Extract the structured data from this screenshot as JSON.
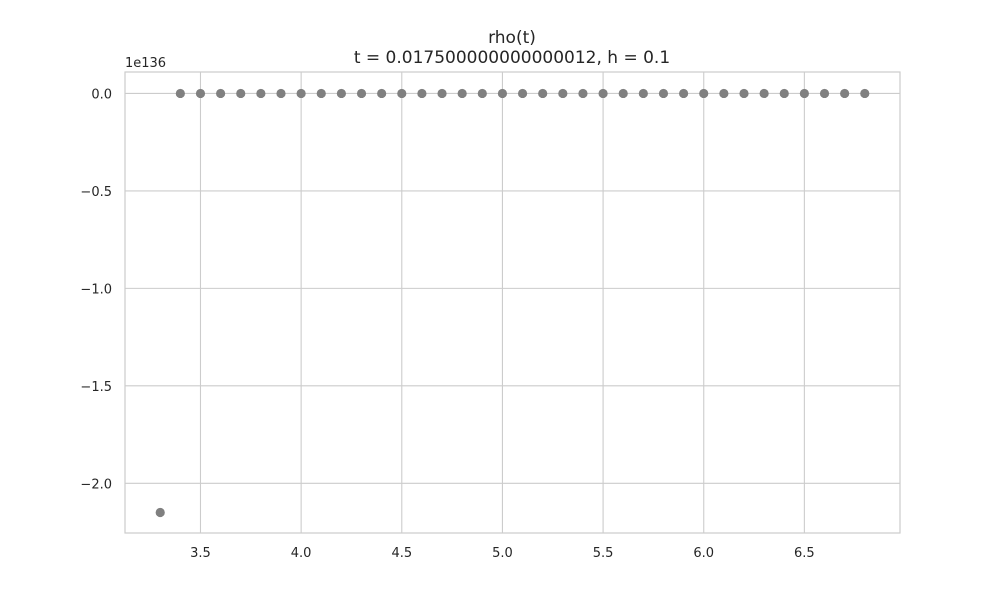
{
  "chart_data": {
    "type": "scatter",
    "title": "rho(t)",
    "subtitle": "t = 0.017500000000000012, h = 0.1",
    "xlabel": "",
    "ylabel": "",
    "y_offset_label": "1e136",
    "xlim": [
      3.125,
      6.975
    ],
    "ylim": [
      -2.255,
      0.11
    ],
    "x_ticks": [
      3.5,
      4.0,
      4.5,
      5.0,
      5.5,
      6.0,
      6.5
    ],
    "x_tick_labels": [
      "3.5",
      "4.0",
      "4.5",
      "5.0",
      "5.5",
      "6.0",
      "6.5"
    ],
    "y_ticks": [
      0.0,
      -0.5,
      -1.0,
      -1.5,
      -2.0
    ],
    "y_tick_labels": [
      "0.0",
      "−0.5",
      "−1.0",
      "−1.5",
      "−2.0"
    ],
    "grid": true,
    "marker_color": "#808080",
    "points": [
      {
        "x": 3.3,
        "y": -2.15
      },
      {
        "x": 3.4,
        "y": 0.0
      },
      {
        "x": 3.5,
        "y": 0.0
      },
      {
        "x": 3.6,
        "y": 0.0
      },
      {
        "x": 3.7,
        "y": 0.0
      },
      {
        "x": 3.8,
        "y": 0.0
      },
      {
        "x": 3.9,
        "y": 0.0
      },
      {
        "x": 4.0,
        "y": 0.0
      },
      {
        "x": 4.1,
        "y": 0.0
      },
      {
        "x": 4.2,
        "y": 0.0
      },
      {
        "x": 4.3,
        "y": 0.0
      },
      {
        "x": 4.4,
        "y": 0.0
      },
      {
        "x": 4.5,
        "y": 0.0
      },
      {
        "x": 4.6,
        "y": 0.0
      },
      {
        "x": 4.7,
        "y": 0.0
      },
      {
        "x": 4.8,
        "y": 0.0
      },
      {
        "x": 4.9,
        "y": 0.0
      },
      {
        "x": 5.0,
        "y": 0.0
      },
      {
        "x": 5.1,
        "y": 0.0
      },
      {
        "x": 5.2,
        "y": 0.0
      },
      {
        "x": 5.3,
        "y": 0.0
      },
      {
        "x": 5.4,
        "y": 0.0
      },
      {
        "x": 5.5,
        "y": 0.0
      },
      {
        "x": 5.6,
        "y": 0.0
      },
      {
        "x": 5.7,
        "y": 0.0
      },
      {
        "x": 5.8,
        "y": 0.0
      },
      {
        "x": 5.9,
        "y": 0.0
      },
      {
        "x": 6.0,
        "y": 0.0
      },
      {
        "x": 6.1,
        "y": 0.0
      },
      {
        "x": 6.2,
        "y": 0.0
      },
      {
        "x": 6.3,
        "y": 0.0
      },
      {
        "x": 6.4,
        "y": 0.0
      },
      {
        "x": 6.5,
        "y": 0.0
      },
      {
        "x": 6.6,
        "y": 0.0
      },
      {
        "x": 6.7,
        "y": 0.0
      },
      {
        "x": 6.8,
        "y": 0.0
      }
    ]
  }
}
